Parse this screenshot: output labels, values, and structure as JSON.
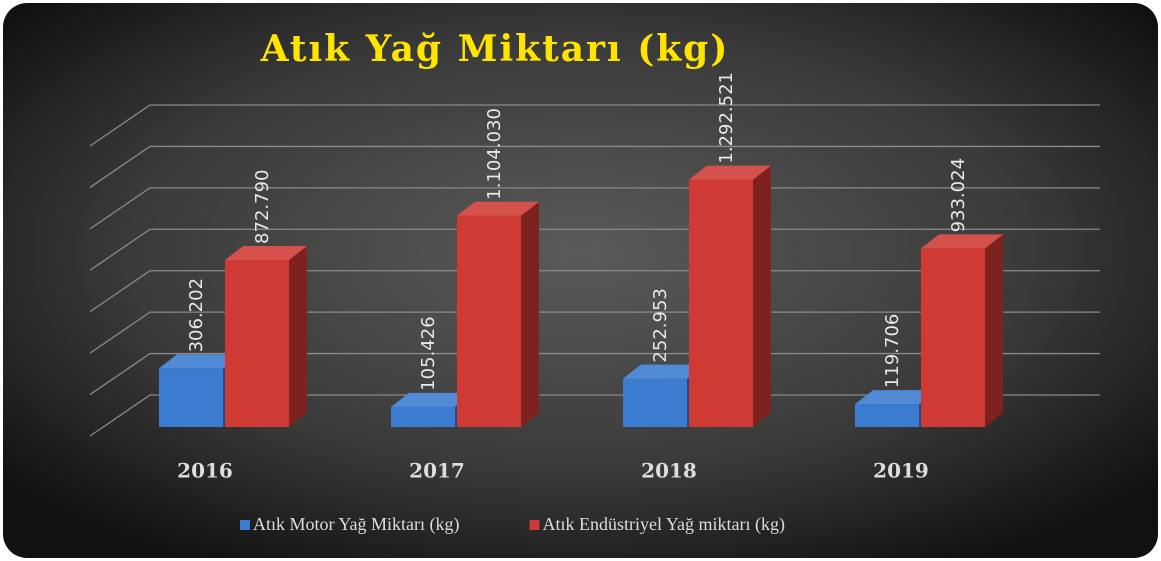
{
  "chart_data": {
    "type": "bar3d",
    "title": "Atık Yağ Miktarı (kg)",
    "categories": [
      "2016",
      "2017",
      "2018",
      "2019"
    ],
    "series": [
      {
        "name": "Atık Motor Yağ Miktarı (kg)",
        "color": "#3b7bd0",
        "values": [
          306202,
          105426,
          252953,
          119706
        ],
        "value_labels": [
          "306.202",
          "105.426",
          "252.953",
          "119.706"
        ]
      },
      {
        "name": "Atık Endüstriyel Yağ miktarı (kg)",
        "color": "#d03a34",
        "values": [
          872790,
          1104030,
          1292521,
          933024
        ],
        "value_labels": [
          "872.790",
          "1.104.030",
          "1.292.521",
          "933.024"
        ]
      }
    ],
    "ylim": [
      0,
      1400000
    ],
    "yticks": [
      0,
      200000,
      400000,
      600000,
      800000,
      1000000,
      1200000,
      1400000
    ],
    "grid": true,
    "legend": "bottom"
  }
}
